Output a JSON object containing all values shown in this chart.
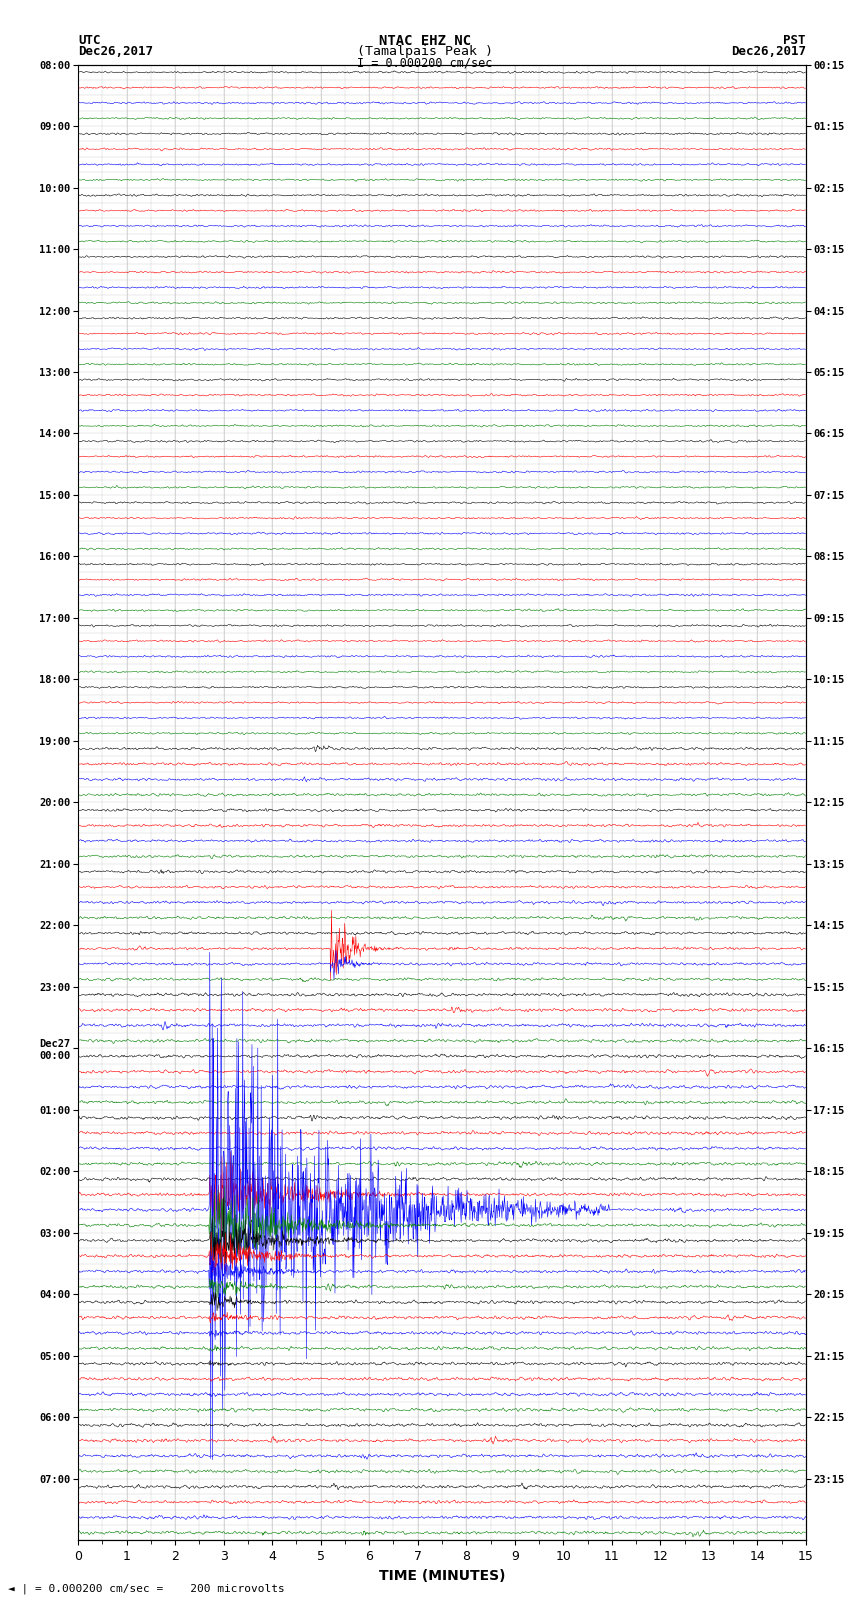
{
  "title_line1": "NTAC EHZ NC",
  "title_line2": "(Tamalpais Peak )",
  "title_line3": "I = 0.000200 cm/sec",
  "label_left_top": "UTC",
  "label_left_date": "Dec26,2017",
  "label_right_top": "PST",
  "label_right_date": "Dec26,2017",
  "xlabel": "TIME (MINUTES)",
  "bottom_label": "◄ | = 0.000200 cm/sec =    200 microvolts",
  "utc_times": [
    "08:00",
    "09:00",
    "10:00",
    "11:00",
    "12:00",
    "13:00",
    "14:00",
    "15:00",
    "16:00",
    "17:00",
    "18:00",
    "19:00",
    "20:00",
    "21:00",
    "22:00",
    "23:00",
    "Dec27\n00:00",
    "01:00",
    "02:00",
    "03:00",
    "04:00",
    "05:00",
    "06:00",
    "07:00"
  ],
  "pst_times": [
    "00:15",
    "01:15",
    "02:15",
    "03:15",
    "04:15",
    "05:15",
    "06:15",
    "07:15",
    "08:15",
    "09:15",
    "10:15",
    "11:15",
    "12:15",
    "13:15",
    "14:15",
    "15:15",
    "16:15",
    "17:15",
    "18:15",
    "19:15",
    "20:15",
    "21:15",
    "22:15",
    "23:15"
  ],
  "n_rows": 96,
  "n_minutes": 15,
  "bg_color": "#ffffff",
  "grid_color": "#cccccc",
  "line_colors": [
    "black",
    "red",
    "blue",
    "green"
  ],
  "figsize": [
    8.5,
    16.13
  ],
  "dpi": 100
}
